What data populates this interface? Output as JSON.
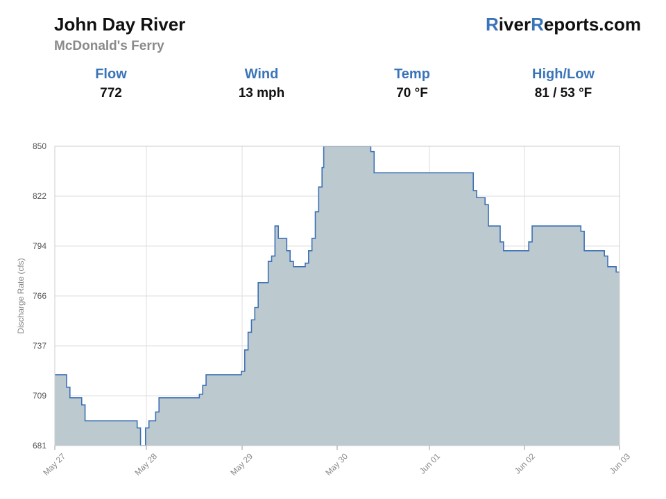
{
  "header": {
    "title": "John Day River",
    "subtitle": "McDonald's Ferry",
    "brand": {
      "r1": "R",
      "part1": "iver",
      "r2": "R",
      "part2": "eports.com"
    }
  },
  "stats": [
    {
      "label": "Flow",
      "value": "772"
    },
    {
      "label": "Wind",
      "value": "13 mph"
    },
    {
      "label": "Temp",
      "value": "70 °F"
    },
    {
      "label": "High/Low",
      "value": "81 / 53 °F"
    }
  ],
  "colors": {
    "accent": "#3a74b8",
    "line": "#3d70b5",
    "fill": "#bccacf",
    "grid": "#dddddd"
  },
  "chart_data": {
    "type": "area",
    "step": true,
    "title": "",
    "xlabel": "",
    "ylabel": "Discharge Rate (cfs)",
    "ylim": [
      681,
      850
    ],
    "xlim": [
      "2025-05-27 00:00",
      "2025-06-03 00:00"
    ],
    "y_ticks": [
      "681",
      "709",
      "737",
      "766",
      "794",
      "822",
      "850"
    ],
    "x_ticks": [
      "May 27",
      "May 28",
      "May 29",
      "May 30",
      "Jun 01",
      "Jun 02",
      "Jun 03"
    ],
    "grid": true,
    "series": [
      {
        "x": [
          "2025-05-27 00:00",
          "2025-05-27 03:30",
          "2025-05-27 04:30",
          "2025-05-27 08:00",
          "2025-05-27 09:00",
          "2025-05-28 00:30",
          "2025-05-28 01:30",
          "2025-05-28 03:00",
          "2025-05-28 04:00",
          "2025-05-28 06:00",
          "2025-05-28 07:00",
          "2025-05-28 19:00",
          "2025-05-28 20:00",
          "2025-05-28 21:00",
          "2025-05-29 07:30",
          "2025-05-29 08:30",
          "2025-05-29 09:30",
          "2025-05-29 10:30",
          "2025-05-29 11:30",
          "2025-05-29 12:30",
          "2025-05-29 15:30",
          "2025-05-29 16:30",
          "2025-05-29 17:30",
          "2025-05-29 18:30",
          "2025-05-29 21:00",
          "2025-05-29 22:00",
          "2025-05-29 23:00",
          "2025-05-30 00:00",
          "2025-05-30 02:30",
          "2025-05-30 03:30",
          "2025-05-30 04:30",
          "2025-05-30 05:30",
          "2025-05-30 06:30",
          "2025-05-30 07:30",
          "2025-05-30 08:00",
          "2025-05-30 22:00",
          "2025-05-30 23:00",
          "2025-06-01 04:30",
          "2025-06-01 05:30",
          "2025-06-01 08:00",
          "2025-06-01 09:00",
          "2025-06-01 12:30",
          "2025-06-01 13:30",
          "2025-06-01 21:00",
          "2025-06-01 22:00",
          "2025-06-02 12:30",
          "2025-06-02 13:30",
          "2025-06-02 19:30",
          "2025-06-02 20:30",
          "2025-06-02 23:00"
        ],
        "values": [
          721,
          714,
          708,
          704,
          695,
          691,
          681,
          691,
          695,
          700,
          708,
          710,
          715,
          721,
          723,
          735,
          745,
          752,
          759,
          773,
          785,
          788,
          805,
          798,
          791,
          785,
          782,
          782,
          784,
          791,
          798,
          813,
          827,
          838,
          850,
          847,
          835,
          825,
          821,
          817,
          805,
          796,
          791,
          796,
          805,
          802,
          791,
          788,
          782,
          779
        ]
      }
    ]
  }
}
